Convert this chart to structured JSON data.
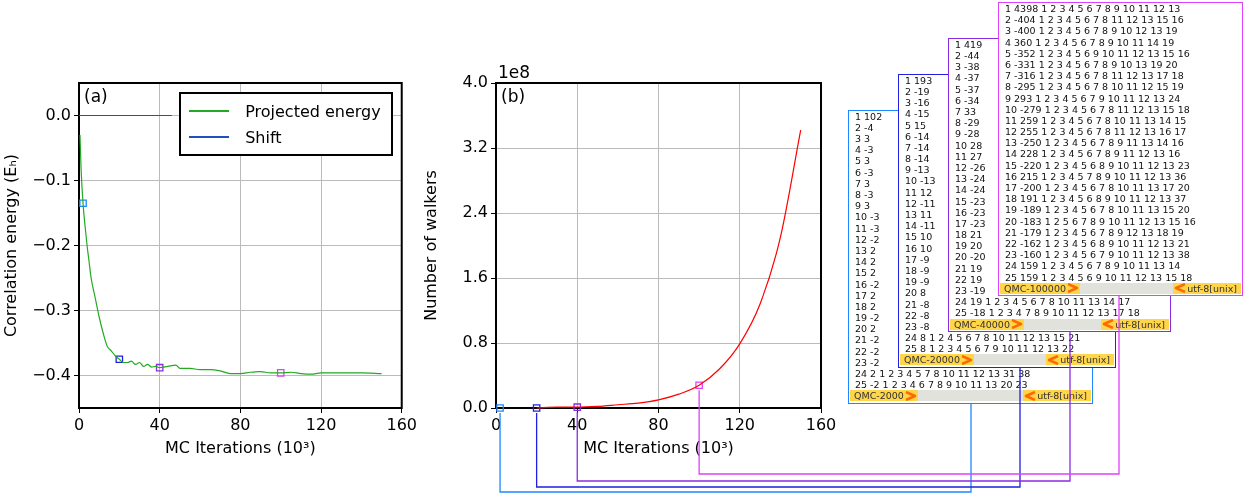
{
  "chart_data": [
    {
      "type": "line",
      "xlabel": "MC Iterations (10³)",
      "ylabel": "Correlation energy (Eₕ)",
      "annotations": [
        "(a)"
      ],
      "xlim": [
        0,
        160
      ],
      "ylim": [
        -0.45,
        0.05
      ],
      "xticks": [
        0,
        40,
        80,
        120,
        160
      ],
      "yticks": [
        {
          "value": 0,
          "label": "0.0"
        },
        {
          "value": -0.1,
          "label": "−0.1"
        },
        {
          "value": -0.2,
          "label": "−0.2"
        },
        {
          "value": -0.3,
          "label": "−0.3"
        },
        {
          "value": -0.4,
          "label": "−0.4"
        }
      ],
      "grid": true,
      "legend": "top right",
      "series": [
        {
          "name": "Projected energy",
          "color": "#22aa22",
          "x": [
            0.5,
            1,
            2,
            3,
            4,
            5,
            6,
            8,
            10,
            12,
            14,
            16,
            18,
            20,
            22,
            24,
            26,
            28,
            30,
            32,
            34,
            36,
            38,
            40,
            44,
            48,
            50,
            55,
            60,
            65,
            70,
            75,
            80,
            85,
            90,
            95,
            100,
            105,
            110,
            115,
            120,
            130,
            140,
            150
          ],
          "values": [
            -0.03,
            -0.08,
            -0.135,
            -0.17,
            -0.2,
            -0.225,
            -0.25,
            -0.28,
            -0.31,
            -0.335,
            -0.355,
            -0.362,
            -0.37,
            -0.375,
            -0.38,
            -0.38,
            -0.378,
            -0.383,
            -0.38,
            -0.386,
            -0.383,
            -0.387,
            -0.386,
            -0.388,
            -0.386,
            -0.384,
            -0.389,
            -0.389,
            -0.391,
            -0.391,
            -0.393,
            -0.397,
            -0.397,
            -0.395,
            -0.394,
            -0.396,
            -0.396,
            -0.395,
            -0.397,
            -0.398,
            -0.396,
            -0.396,
            -0.396,
            -0.397
          ]
        },
        {
          "name": "Shift",
          "color": "#2050c0",
          "x": [
            0,
            46
          ],
          "values": [
            0,
            0
          ]
        },
        {
          "type": "scatter",
          "marker": "square",
          "colors": [
            "#1e88ff",
            "#2020e0",
            "#8a2be2",
            "#e040fb"
          ],
          "x": [
            2,
            20,
            40,
            100
          ],
          "values": [
            -0.135,
            -0.375,
            -0.388,
            -0.396
          ]
        }
      ]
    },
    {
      "type": "line",
      "xlabel": "MC Iterations (10³)",
      "ylabel": "Number of walkers",
      "annotations": [
        "(b)",
        "1e8"
      ],
      "xlim": [
        0,
        160
      ],
      "ylim": [
        0,
        4
      ],
      "xticks": [
        0,
        40,
        80,
        120,
        160
      ],
      "yticks": [
        {
          "value": 0,
          "label": "0.0"
        },
        0.8,
        1.6,
        2.4,
        3.2,
        {
          "value": 4,
          "label": "4.0"
        }
      ],
      "grid": true,
      "series": [
        {
          "color": "#ff0000",
          "x": [
            20,
            30,
            40,
            50,
            60,
            70,
            80,
            90,
            100,
            110,
            120,
            130,
            140,
            150
          ],
          "values": [
            0,
            0.01,
            0.01,
            0.02,
            0.04,
            0.06,
            0.1,
            0.17,
            0.28,
            0.48,
            0.79,
            1.28,
            2.1,
            3.42
          ]
        },
        {
          "type": "scatter",
          "marker": "square",
          "colors": [
            "#1e88ff",
            "#2020e0",
            "#8a2be2",
            "#e040fb"
          ],
          "x": [
            2,
            20,
            40,
            100
          ],
          "values": [
            0,
            0,
            0.01,
            0.28
          ]
        }
      ]
    },
    {
      "type": "other",
      "colors": [
        "#1e88ff",
        "#2020e0",
        "#8a2be2",
        "#e040fb"
      ],
      "annotations": [
        "1 102",
        "2 -4",
        "3 3",
        "4 -3",
        "5 3",
        "6 -3",
        "7 3",
        "8 -3",
        "9 3",
        "10 -3",
        "11 -3",
        "12 -2",
        "13 2",
        "14 2",
        "15 2",
        "16 -2",
        "17 2",
        "18 2",
        "19 -2",
        "20 2",
        "21 -2",
        "22 -2",
        "23 -2",
        "24 2 1 2 3 4 5 7 8 10 11 12 13 31 38",
        "25 -2 1 2 3 4 6 7 8 9 10 11 13 20 23",
        "QMC-2000",
        "utf-8[unix]",
        "1 193",
        "2 -19",
        "3 -16",
        "4 -15",
        "5 15",
        "6 -14",
        "7 -14",
        "8 -14",
        "9 -13",
        "10 -13",
        "11 12",
        "12 -11",
        "13 11",
        "14 -11",
        "15 10",
        "16 10",
        "17 -9",
        "18 -9",
        "19 -9",
        "20 8",
        "21 -8",
        "22 -8",
        "23 -8",
        "24 8 1 2 4 5 6 7 8 10 11 12 13 15 21",
        "25 8 1 2 3 4 5 6 7 9 10 11 12 13 22",
        "QMC-20000",
        "utf-8[unix]",
        "1 419",
        "2 -44",
        "3 -38",
        "4 -37",
        "5 -37",
        "6 -34",
        "7 33",
        "8 -29",
        "9 -28",
        "10 28",
        "11 27",
        "12 -26",
        "13 -24",
        "14 -24",
        "15 -23",
        "16 -23",
        "17 -23",
        "18 21",
        "19 20",
        "20 -20",
        "21 19",
        "22 19",
        "23 -19",
        "24 19 1 2 3 4 5 6 7 8 10 11 13 14 17",
        "25 -18 1 2 3 4 7 8 9 10 11 12 13 17 18",
        "QMC-40000",
        "utf-8[unix]",
        "1 4398 1 2 3 4 5 6 7 8 9 10 11 12 13",
        "2 -404 1 2 3 4 5 6 7 8 11 12 13 15 16",
        "3 -400 1 2 3 4 5 6 7 8 9 10 12 13 19",
        "4 360 1 2 3 4 5 6 7 8 9 10 11 14 19",
        "5 -352 1 2 3 4 5 6 9 10 11 12 13 15 16",
        "6 -331 1 2 3 4 5 6 7 8 9 10 13 19 20",
        "7 -316 1 2 3 4 5 6 7 8 11 12 13 17 18",
        "8 -295 1 2 3 4 5 6 7 8 10 11 12 15 19",
        "9 293 1 2 3 4 5 6 7 9 10 11 12 13 24",
        "10 -279 1 2 3 4 5 6 7 8 11 12 13 15 18",
        "11 259 1 2 3 4 5 6 7 8 10 11 13 14 15",
        "12 255 1 2 3 4 5 6 7 8 11 12 13 16 17",
        "13 -250 1 2 3 4 5 6 7 8 9 11 13 14 16",
        "14 228 1 2 3 4 5 6 7 8 9 11 12 13 16",
        "15 -220 1 2 3 4 5 6 8 9 10 11 12 13 23",
        "16 215 1 2 3 4 5 7 8 9 10 11 12 13 36",
        "17 -200 1 2 3 4 5 6 7 8 10 11 13 17 20",
        "18 191 1 2 3 4 5 6 8 9 10 11 12 13 37",
        "19 -189 1 2 3 4 5 6 7 8 10 11 13 15 20",
        "20 -183 1 2 5 6 7 8 9 10 11 12 13 15 16",
        "21 -179 1 2 3 4 5 6 7 8 9 12 13 18 19",
        "22 -162 1 2 3 4 5 6 8 9 10 11 12 13 21",
        "23 -160 1 2 3 4 5 6 7 9 10 11 12 13 38",
        "24 159 1 2 3 4 5 6 7 8 9 10 11 13 14",
        "25 159 1 2 3 4 5 6 9 10 11 12 13 15 18",
        "QMC-100000",
        "utf-8[unix]"
      ]
    }
  ]
}
